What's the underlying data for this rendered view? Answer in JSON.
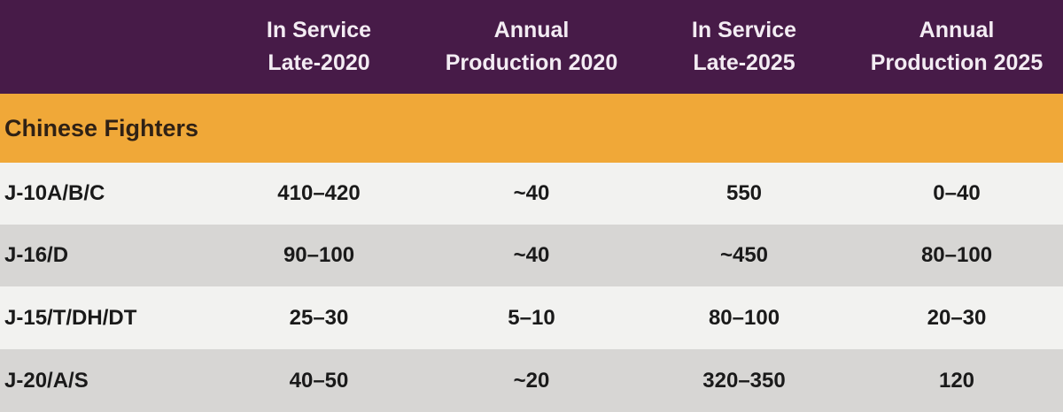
{
  "colors": {
    "header_bg": "#471b48",
    "header_text": "#f3ecf3",
    "section_bg": "#f0a838",
    "section_text": "#2f2115",
    "row_light_bg": "#f2f2f0",
    "row_dark_bg": "#d7d6d4",
    "row_text": "#1a1a1a"
  },
  "chart_data": {
    "type": "table",
    "section_header": "Chinese Fighters",
    "column_headers": [
      {
        "line1": "In Service",
        "line2": "Late-2020"
      },
      {
        "line1": "Annual",
        "line2": "Production 2020"
      },
      {
        "line1": "In Service",
        "line2": "Late-2025"
      },
      {
        "line1": "Annual",
        "line2": "Production 2025"
      }
    ],
    "rows": [
      [
        "J-10A/B/C",
        "410–420",
        "~40",
        "550",
        "0–40"
      ],
      [
        "J-16/D",
        "90–100",
        "~40",
        "~450",
        "80–100"
      ],
      [
        "J-15/T/DH/DT",
        "25–30",
        "5–10",
        "80–100",
        "20–30"
      ],
      [
        "J-20/A/S",
        "40–50",
        "~20",
        "320–350",
        "120"
      ]
    ]
  }
}
